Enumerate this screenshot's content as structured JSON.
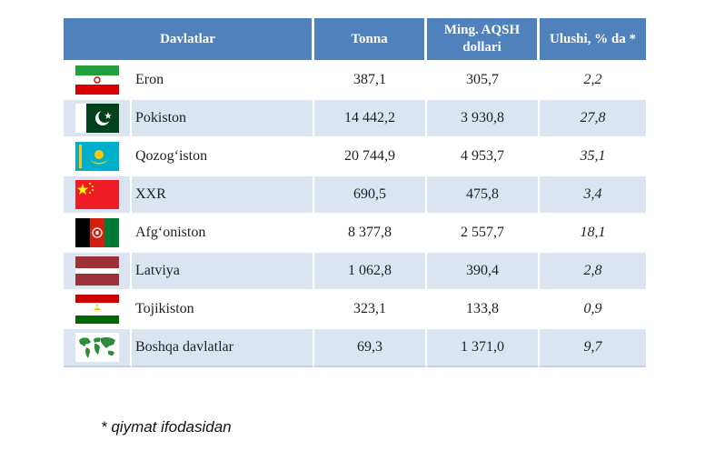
{
  "table": {
    "headers": {
      "country": "Davlatlar",
      "tonnes": "Tonna",
      "value": "Ming. AQSH dollari",
      "share": "Ulushi, % da *"
    },
    "rows": [
      {
        "flag": "iran-flag-icon",
        "country": "Eron",
        "tonnes": "387,1",
        "value": "305,7",
        "share": "2,2"
      },
      {
        "flag": "pakistan-flag-icon",
        "country": "Pokiston",
        "tonnes": "14 442,2",
        "value": "3 930,8",
        "share": "27,8"
      },
      {
        "flag": "kazakhstan-flag-icon",
        "country": "Qozog‘iston",
        "tonnes": "20 744,9",
        "value": "4 953,7",
        "share": "35,1"
      },
      {
        "flag": "china-flag-icon",
        "country": "XXR",
        "tonnes": "690,5",
        "value": "475,8",
        "share": "3,4"
      },
      {
        "flag": "afghanistan-flag-icon",
        "country": "Afg‘oniston",
        "tonnes": "8 377,8",
        "value": "2 557,7",
        "share": "18,1"
      },
      {
        "flag": "latvia-flag-icon",
        "country": "Latviya",
        "tonnes": "1 062,8",
        "value": "390,4",
        "share": "2,8"
      },
      {
        "flag": "tajikistan-flag-icon",
        "country": "Tojikiston",
        "tonnes": "323,1",
        "value": "133,8",
        "share": "0,9"
      },
      {
        "flag": "world-map-icon",
        "country": "Boshqa davlatlar",
        "tonnes": "69,3",
        "value": "1 371,0",
        "share": "9,7"
      }
    ]
  },
  "footnote": "* qiymat ifodasidan",
  "colors": {
    "header_bg": "#4f81bd",
    "row_alt_bg": "#dbe5f1"
  }
}
